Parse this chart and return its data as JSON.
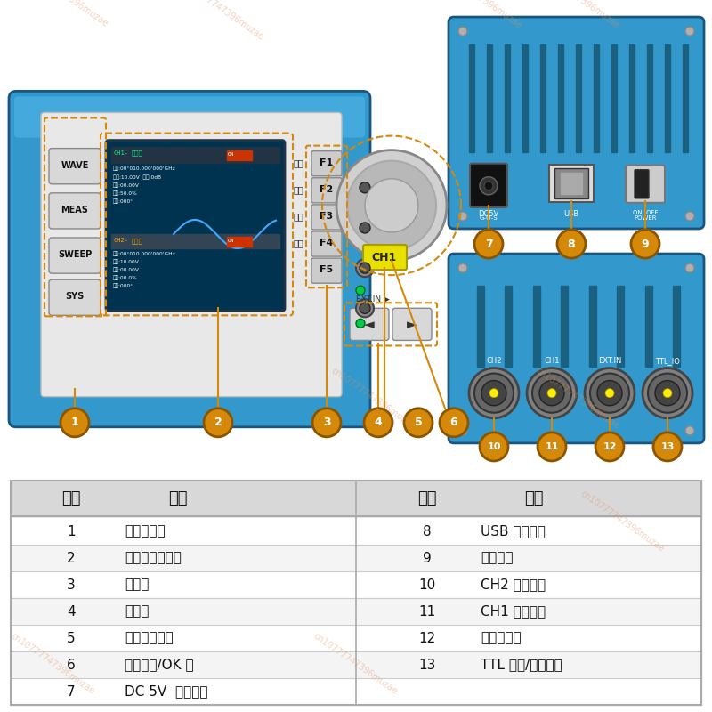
{
  "bg_color": "#ffffff",
  "table_bg": "#e8e8e8",
  "table_row_bg": "#ffffff",
  "table_alt_bg": "#f0f0f0",
  "table_header_bg": "#d8d8d8",
  "table_border_color": "#aaaaaa",
  "table_text_color": "#111111",
  "callout_color": "#d4890a",
  "callout_edge": "#8B5500",
  "callout_text": "#ffffff",
  "watermark_color": "#e09060",
  "watermark_alpha": 0.4,
  "watermark_text": "cn10777747396muzae",
  "header_row": [
    "序号",
    "描述",
    "序号",
    "描述"
  ],
  "left_rows": [
    [
      "1",
      "功能按键区"
    ],
    [
      "2",
      "彩色液晶显示屏"
    ],
    [
      "3",
      "菜单键"
    ],
    [
      "4",
      "方向键"
    ],
    [
      "5",
      "通道控制开关"
    ],
    [
      "6",
      "调节旋鈕/OK 键"
    ],
    [
      "7",
      "DC 5V  供电接口"
    ]
  ],
  "right_rows": [
    [
      "8",
      "USB 通信接口"
    ],
    [
      "9",
      "电源开关"
    ],
    [
      "10",
      "CH2 输出端口"
    ],
    [
      "11",
      "CH1 输出端口"
    ],
    [
      "12",
      "外测量端口"
    ],
    [
      "13",
      "TTL 输入/输出端口"
    ],
    [
      "",
      ""
    ]
  ],
  "device_color": "#3399cc",
  "device_dark": "#2070a0",
  "device_edge": "#1a5580",
  "screen_bg": "#003350",
  "panel_bg": "#e0e0e0",
  "btn_bg": "#d8d8d8",
  "btn_edge": "#888888",
  "knob_color": "#c0c0c0",
  "f_btn_bg": "#cccccc",
  "ch1_btn_color": "#e8e000",
  "led_color": "#00cc44",
  "bnc_color": "#707070",
  "vent_color": "#1a6080"
}
